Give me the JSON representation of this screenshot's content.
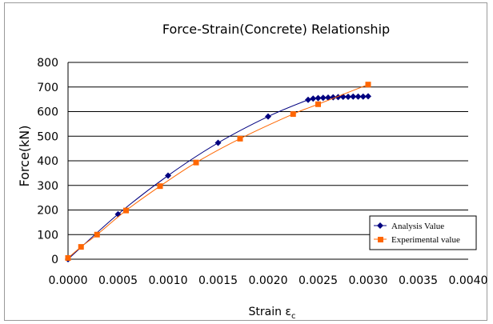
{
  "chart_data": {
    "type": "line",
    "title": "Force-Strain(Concrete) Relationship",
    "xlabel": "Strain εc",
    "xlabel_main": "Strain ε",
    "xlabel_sub": "c",
    "ylabel": "Force(kN)",
    "xlim": [
      0,
      0.004
    ],
    "ylim": [
      0,
      800
    ],
    "xticks": [
      "0.0000",
      "0.0005",
      "0.0010",
      "0.0015",
      "0.0020",
      "0.0025",
      "0.0030",
      "0.0035",
      "0.0040"
    ],
    "yticks": [
      "0",
      "100",
      "200",
      "300",
      "400",
      "500",
      "600",
      "700",
      "800"
    ],
    "grid": "horizontal",
    "legend_position": "bottom-right",
    "series": [
      {
        "name": "Analysis Value",
        "color": "#000080",
        "marker": "diamond",
        "x": [
          0,
          0.0005,
          0.001,
          0.0015,
          0.002,
          0.0024,
          0.00245,
          0.0025,
          0.00255,
          0.0026,
          0.00265,
          0.0027,
          0.00275,
          0.0028,
          0.00285,
          0.0029,
          0.00295,
          0.003
        ],
        "y": [
          0,
          183,
          340,
          473,
          580,
          648,
          653,
          655,
          656,
          657,
          658,
          659,
          660,
          660,
          661,
          661,
          661,
          662
        ]
      },
      {
        "name": "Experimental value",
        "color": "#ff6600",
        "marker": "square",
        "x": [
          0,
          0.00013,
          0.00029,
          0.00058,
          0.00092,
          0.00128,
          0.00172,
          0.00225,
          0.0025,
          0.003
        ],
        "y": [
          5,
          50,
          100,
          198,
          297,
          393,
          490,
          590,
          630,
          710
        ]
      }
    ]
  }
}
